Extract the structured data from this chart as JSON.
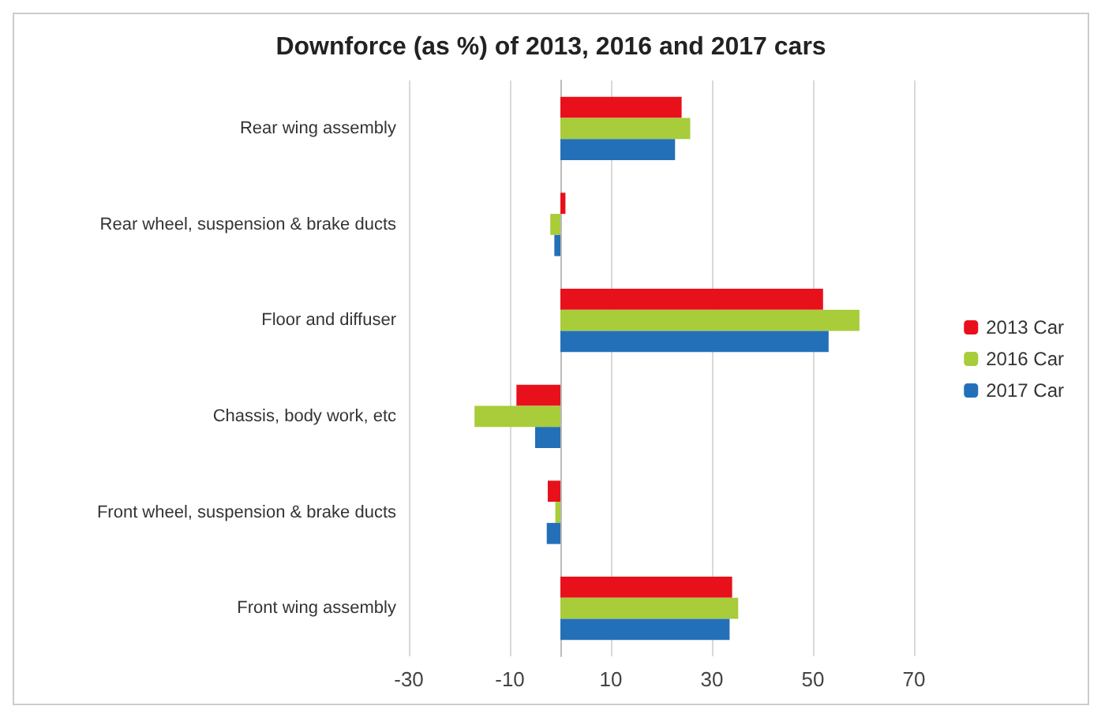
{
  "chart_data": {
    "type": "bar",
    "orientation": "horizontal",
    "title": "Downforce (as %) of 2013, 2016 and 2017 cars",
    "categories": [
      "Rear wing assembly",
      "Rear wheel, suspension & brake ducts",
      "Floor and diffuser",
      "Chassis, body work, etc",
      "Front wheel, suspension & brake ducts",
      "Front wing assembly"
    ],
    "series": [
      {
        "name": "2013 Car",
        "color": "#e8101a",
        "values": [
          24,
          1,
          52,
          -8.7,
          -2.5,
          34
        ]
      },
      {
        "name": "2016 Car",
        "color": "#a8cc3a",
        "values": [
          25.7,
          -2,
          59.2,
          -17,
          -1,
          35.2
        ]
      },
      {
        "name": "2017 Car",
        "color": "#2470b8",
        "values": [
          22.7,
          -1.2,
          53.1,
          -5,
          -2.7,
          33.5
        ]
      }
    ],
    "xlim": [
      -30,
      70
    ],
    "xticks": [
      -30,
      -10,
      10,
      30,
      50,
      70
    ],
    "grid": "x",
    "legend": "right"
  }
}
